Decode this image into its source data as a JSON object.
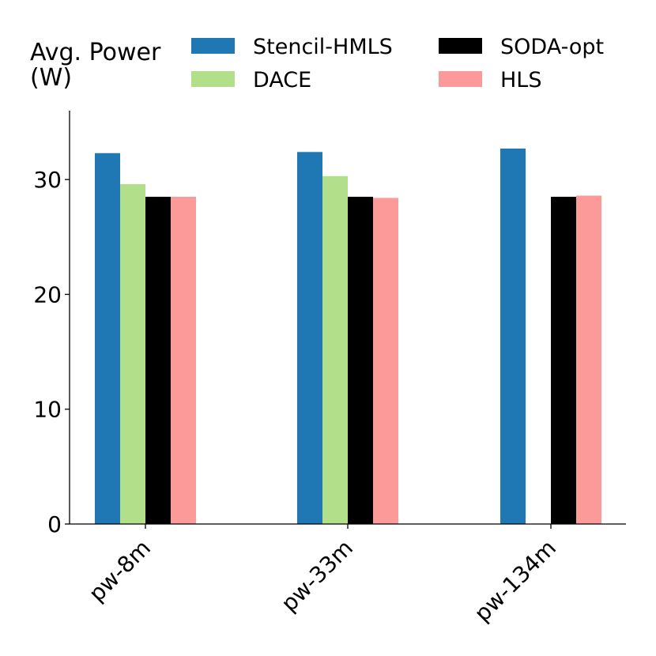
{
  "chart_data": {
    "type": "bar",
    "title": "",
    "ylabel_lines": [
      "Avg. Power",
      "(W)"
    ],
    "xlabel": "",
    "categories": [
      "pw-8m",
      "pw-33m",
      "pw-134m"
    ],
    "series": [
      {
        "name": "Stencil-HMLS",
        "color": "#1f77b4",
        "values": [
          32.3,
          32.4,
          32.7
        ]
      },
      {
        "name": "DACE",
        "color": "#b2df8a",
        "values": [
          29.6,
          30.3,
          null
        ]
      },
      {
        "name": "SODA-opt",
        "color": "#000000",
        "values": [
          28.5,
          28.5,
          28.5
        ]
      },
      {
        "name": "HLS",
        "color": "#fb9a99",
        "values": [
          28.5,
          28.4,
          28.6
        ]
      }
    ],
    "ylim": [
      0,
      36
    ],
    "yticks": [
      0,
      10,
      20,
      30
    ],
    "grid": false,
    "legend_position": "top"
  }
}
